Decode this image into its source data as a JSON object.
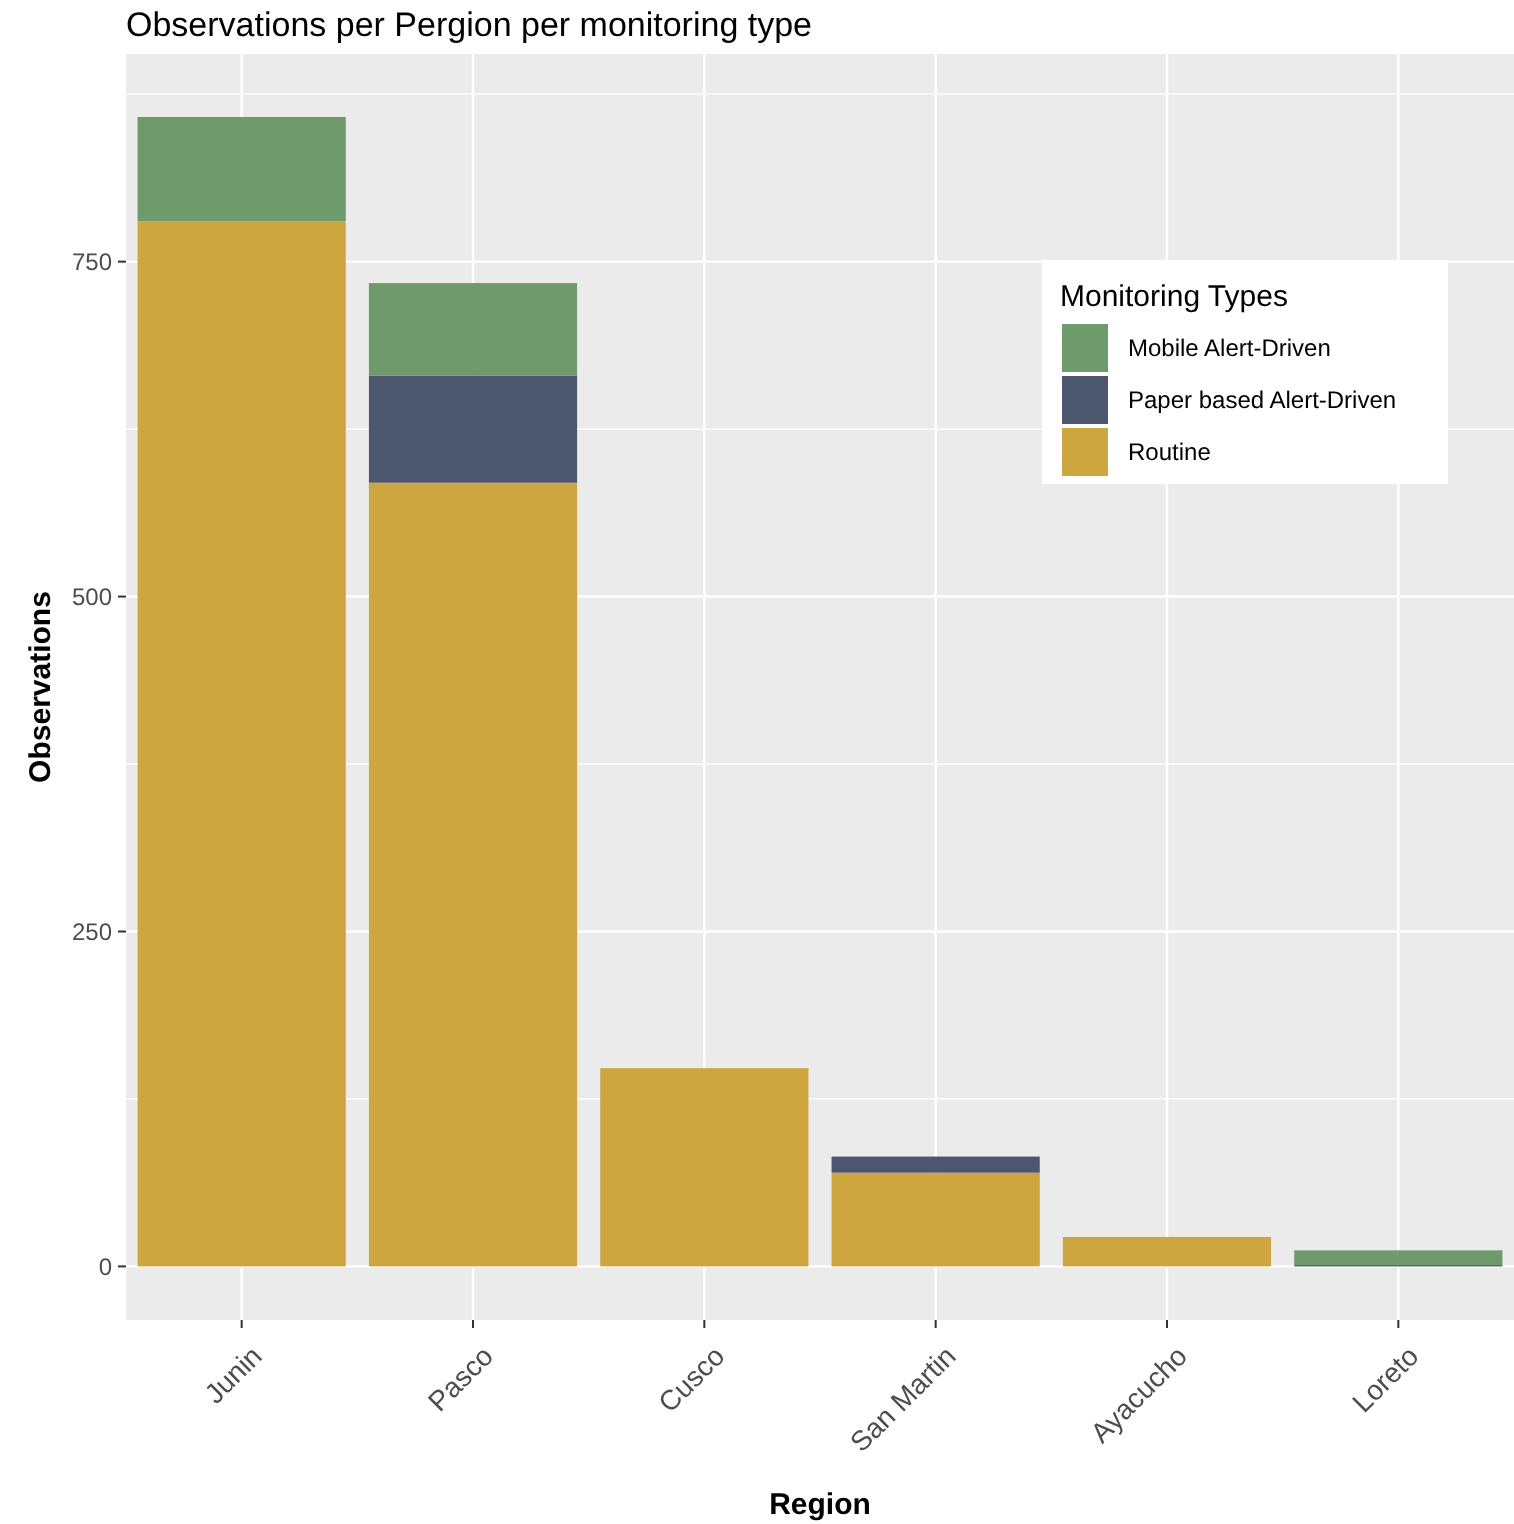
{
  "chart_data": {
    "type": "bar",
    "title": "Observations per Pergion per monitoring type",
    "xlabel": "Region",
    "ylabel": "Observations",
    "legend_title": "Monitoring Types",
    "categories": [
      "Junin",
      "Pasco",
      "Cusco",
      "San Martin",
      "Ayacucho",
      "Loreto"
    ],
    "stacked": true,
    "series": [
      {
        "name": "Routine",
        "color": "#cda640",
        "values": [
          780,
          585,
          148,
          70,
          22,
          0
        ]
      },
      {
        "name": "Paper based Alert-Driven",
        "color": "#4d566f",
        "values": [
          0,
          80,
          0,
          12,
          0,
          1
        ]
      },
      {
        "name": "Mobile Alert-Driven",
        "color": "#6f9a6b",
        "values": [
          78,
          69,
          0,
          0,
          0,
          11
        ]
      }
    ],
    "ylim": [
      -40,
      905
    ],
    "yticks": [
      0,
      250,
      500,
      750
    ],
    "grid": true,
    "legend": "top right"
  }
}
